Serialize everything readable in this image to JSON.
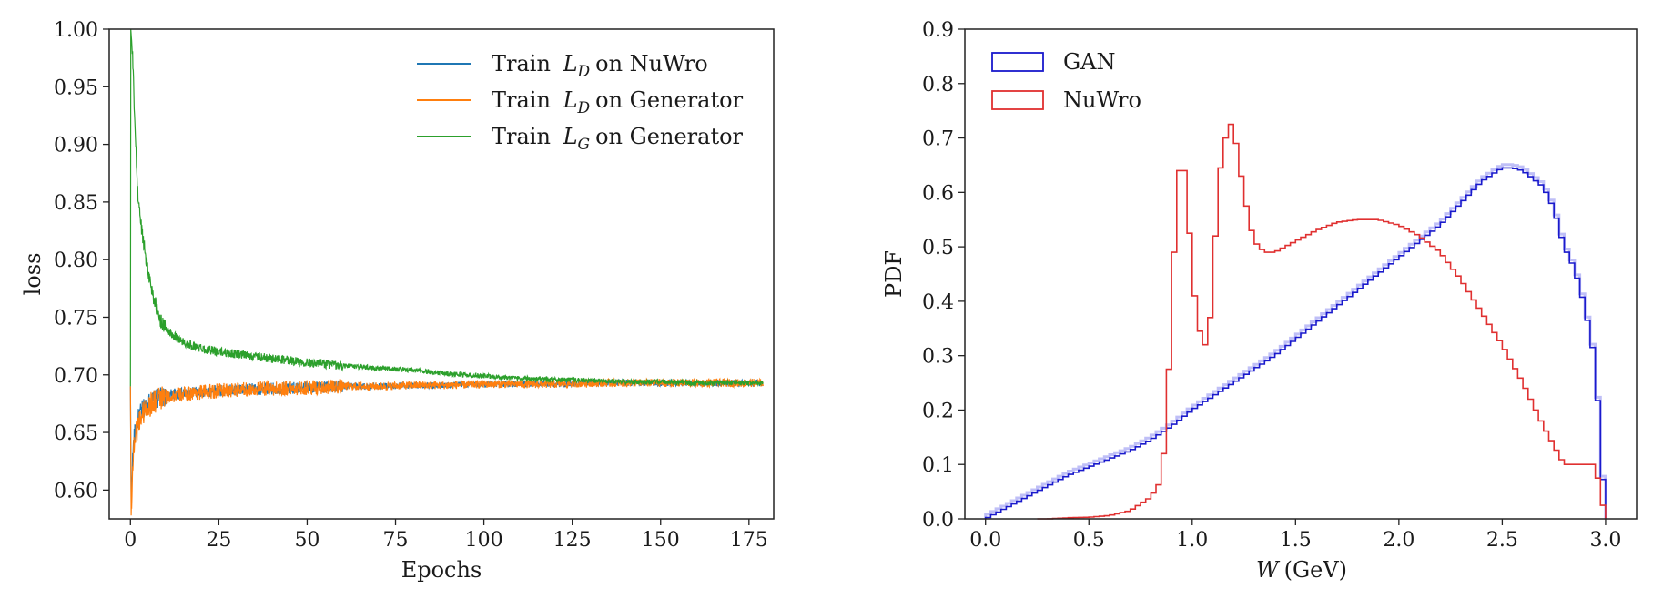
{
  "chart_data": [
    {
      "type": "line",
      "xlabel": "Epochs",
      "ylabel": "loss",
      "xlim": [
        -6,
        182
      ],
      "ylim": [
        0.575,
        1.0
      ],
      "xticks": [
        0,
        25,
        50,
        75,
        100,
        125,
        150,
        175
      ],
      "yticks": [
        0.6,
        0.65,
        0.7,
        0.75,
        0.8,
        0.85,
        0.9,
        0.95,
        1.0
      ],
      "xtick_labels": [
        "0",
        "25",
        "50",
        "75",
        "100",
        "125",
        "150",
        "175"
      ],
      "ytick_labels": [
        "0.60",
        "0.65",
        "0.70",
        "0.75",
        "0.80",
        "0.85",
        "0.90",
        "0.95",
        "1.00"
      ],
      "grid": false,
      "legend_position": "top-right",
      "legend": [
        {
          "pre": "Train ",
          "sym": "L",
          "sub": "D",
          "post": " on NuWro",
          "color": "#1f77b4"
        },
        {
          "pre": "Train ",
          "sym": "L",
          "sub": "D",
          "post": " on Generator",
          "color": "#ff7f0e"
        },
        {
          "pre": "Train ",
          "sym": "L",
          "sub": "G",
          "post": " on Generator",
          "color": "#2ca02c"
        }
      ],
      "series": [
        {
          "name": "Train L_D on NuWro",
          "color": "#1f77b4",
          "x": [
            0,
            0.2,
            0.5,
            1,
            2,
            3,
            5,
            8,
            12,
            20,
            30,
            40,
            50,
            60,
            70,
            80,
            90,
            100,
            110,
            120,
            130,
            140,
            150,
            160,
            170,
            179
          ],
          "y": [
            0.69,
            0.59,
            0.62,
            0.645,
            0.66,
            0.668,
            0.675,
            0.68,
            0.683,
            0.685,
            0.687,
            0.688,
            0.689,
            0.69,
            0.69,
            0.691,
            0.691,
            0.692,
            0.692,
            0.692,
            0.693,
            0.693,
            0.693,
            0.693,
            0.693,
            0.693
          ],
          "noise": 0.004
        },
        {
          "name": "Train L_D on Generator",
          "color": "#ff7f0e",
          "x": [
            0,
            0.2,
            0.5,
            1,
            2,
            3,
            5,
            8,
            12,
            20,
            30,
            40,
            50,
            60,
            70,
            80,
            90,
            100,
            110,
            120,
            130,
            140,
            150,
            160,
            170,
            179
          ],
          "y": [
            0.69,
            0.578,
            0.61,
            0.64,
            0.656,
            0.665,
            0.673,
            0.679,
            0.682,
            0.685,
            0.687,
            0.688,
            0.689,
            0.69,
            0.69,
            0.691,
            0.691,
            0.692,
            0.692,
            0.692,
            0.693,
            0.693,
            0.693,
            0.693,
            0.693,
            0.693
          ],
          "noise": 0.005
        },
        {
          "name": "Train L_G on Generator",
          "color": "#2ca02c",
          "x": [
            0,
            0.1,
            0.3,
            0.7,
            1,
            1.5,
            2,
            3,
            4,
            5,
            6,
            7,
            8,
            10,
            12,
            15,
            20,
            25,
            30,
            40,
            50,
            60,
            70,
            80,
            90,
            100,
            110,
            120,
            130,
            140,
            150,
            160,
            170,
            179
          ],
          "y": [
            0.69,
            1.0,
            0.99,
            0.97,
            0.94,
            0.9,
            0.86,
            0.83,
            0.81,
            0.79,
            0.775,
            0.762,
            0.75,
            0.74,
            0.735,
            0.728,
            0.723,
            0.72,
            0.718,
            0.714,
            0.711,
            0.708,
            0.706,
            0.704,
            0.701,
            0.699,
            0.697,
            0.696,
            0.695,
            0.694,
            0.694,
            0.693,
            0.693,
            0.693
          ],
          "noise": 0.003
        }
      ]
    },
    {
      "type": "histogram-step",
      "xlabel_symbol": "W",
      "xlabel_unit": "(GeV)",
      "ylabel": "PDF",
      "xlim": [
        -0.1,
        3.15
      ],
      "ylim": [
        0.0,
        0.9
      ],
      "xticks": [
        0.0,
        0.5,
        1.0,
        1.5,
        2.0,
        2.5,
        3.0
      ],
      "yticks": [
        0.0,
        0.1,
        0.2,
        0.3,
        0.4,
        0.5,
        0.6,
        0.7,
        0.8,
        0.9
      ],
      "xtick_labels": [
        "0.0",
        "0.5",
        "1.0",
        "1.5",
        "2.0",
        "2.5",
        "3.0"
      ],
      "ytick_labels": [
        "0.0",
        "0.1",
        "0.2",
        "0.3",
        "0.4",
        "0.5",
        "0.6",
        "0.7",
        "0.8",
        "0.9"
      ],
      "grid": false,
      "legend_position": "top-left",
      "legend": [
        {
          "label": "GAN",
          "color": "#1a1acc"
        },
        {
          "label": "NuWro",
          "color": "#e03030"
        }
      ],
      "series": [
        {
          "name": "GAN",
          "color": "#1a1acc",
          "band": true,
          "x": [
            0.0,
            0.1,
            0.2,
            0.3,
            0.4,
            0.5,
            0.6,
            0.7,
            0.8,
            0.9,
            1.0,
            1.1,
            1.2,
            1.3,
            1.4,
            1.5,
            1.6,
            1.7,
            1.8,
            1.9,
            2.0,
            2.1,
            2.2,
            2.3,
            2.4,
            2.5,
            2.55,
            2.6,
            2.7,
            2.75,
            2.8,
            2.85,
            2.9,
            2.95,
            3.0
          ],
          "y": [
            0.0,
            0.02,
            0.04,
            0.06,
            0.08,
            0.095,
            0.11,
            0.125,
            0.145,
            0.17,
            0.2,
            0.225,
            0.25,
            0.275,
            0.3,
            0.33,
            0.36,
            0.39,
            0.42,
            0.45,
            0.48,
            0.51,
            0.54,
            0.58,
            0.62,
            0.645,
            0.645,
            0.64,
            0.61,
            0.57,
            0.5,
            0.46,
            0.39,
            0.29,
            0.0
          ]
        },
        {
          "name": "NuWro",
          "color": "#e03030",
          "band": false,
          "x": [
            0.25,
            0.3,
            0.4,
            0.5,
            0.6,
            0.7,
            0.8,
            0.85,
            0.875,
            0.9,
            0.925,
            0.95,
            0.975,
            1.0,
            1.025,
            1.05,
            1.075,
            1.1,
            1.125,
            1.15,
            1.175,
            1.2,
            1.225,
            1.25,
            1.275,
            1.3,
            1.325,
            1.35,
            1.4,
            1.5,
            1.6,
            1.7,
            1.8,
            1.9,
            2.0,
            2.1,
            2.2,
            2.3,
            2.4,
            2.5,
            2.6,
            2.7,
            2.8,
            2.9,
            2.95,
            3.0
          ],
          "y": [
            0.0,
            0.0,
            0.002,
            0.003,
            0.006,
            0.015,
            0.04,
            0.07,
            0.17,
            0.38,
            0.6,
            0.68,
            0.6,
            0.45,
            0.37,
            0.32,
            0.32,
            0.42,
            0.62,
            0.67,
            0.73,
            0.72,
            0.66,
            0.6,
            0.55,
            0.51,
            0.5,
            0.49,
            0.49,
            0.51,
            0.53,
            0.545,
            0.55,
            0.55,
            0.54,
            0.52,
            0.49,
            0.44,
            0.38,
            0.32,
            0.25,
            0.17,
            0.1,
            0.1,
            0.1,
            0.0
          ]
        }
      ]
    }
  ]
}
